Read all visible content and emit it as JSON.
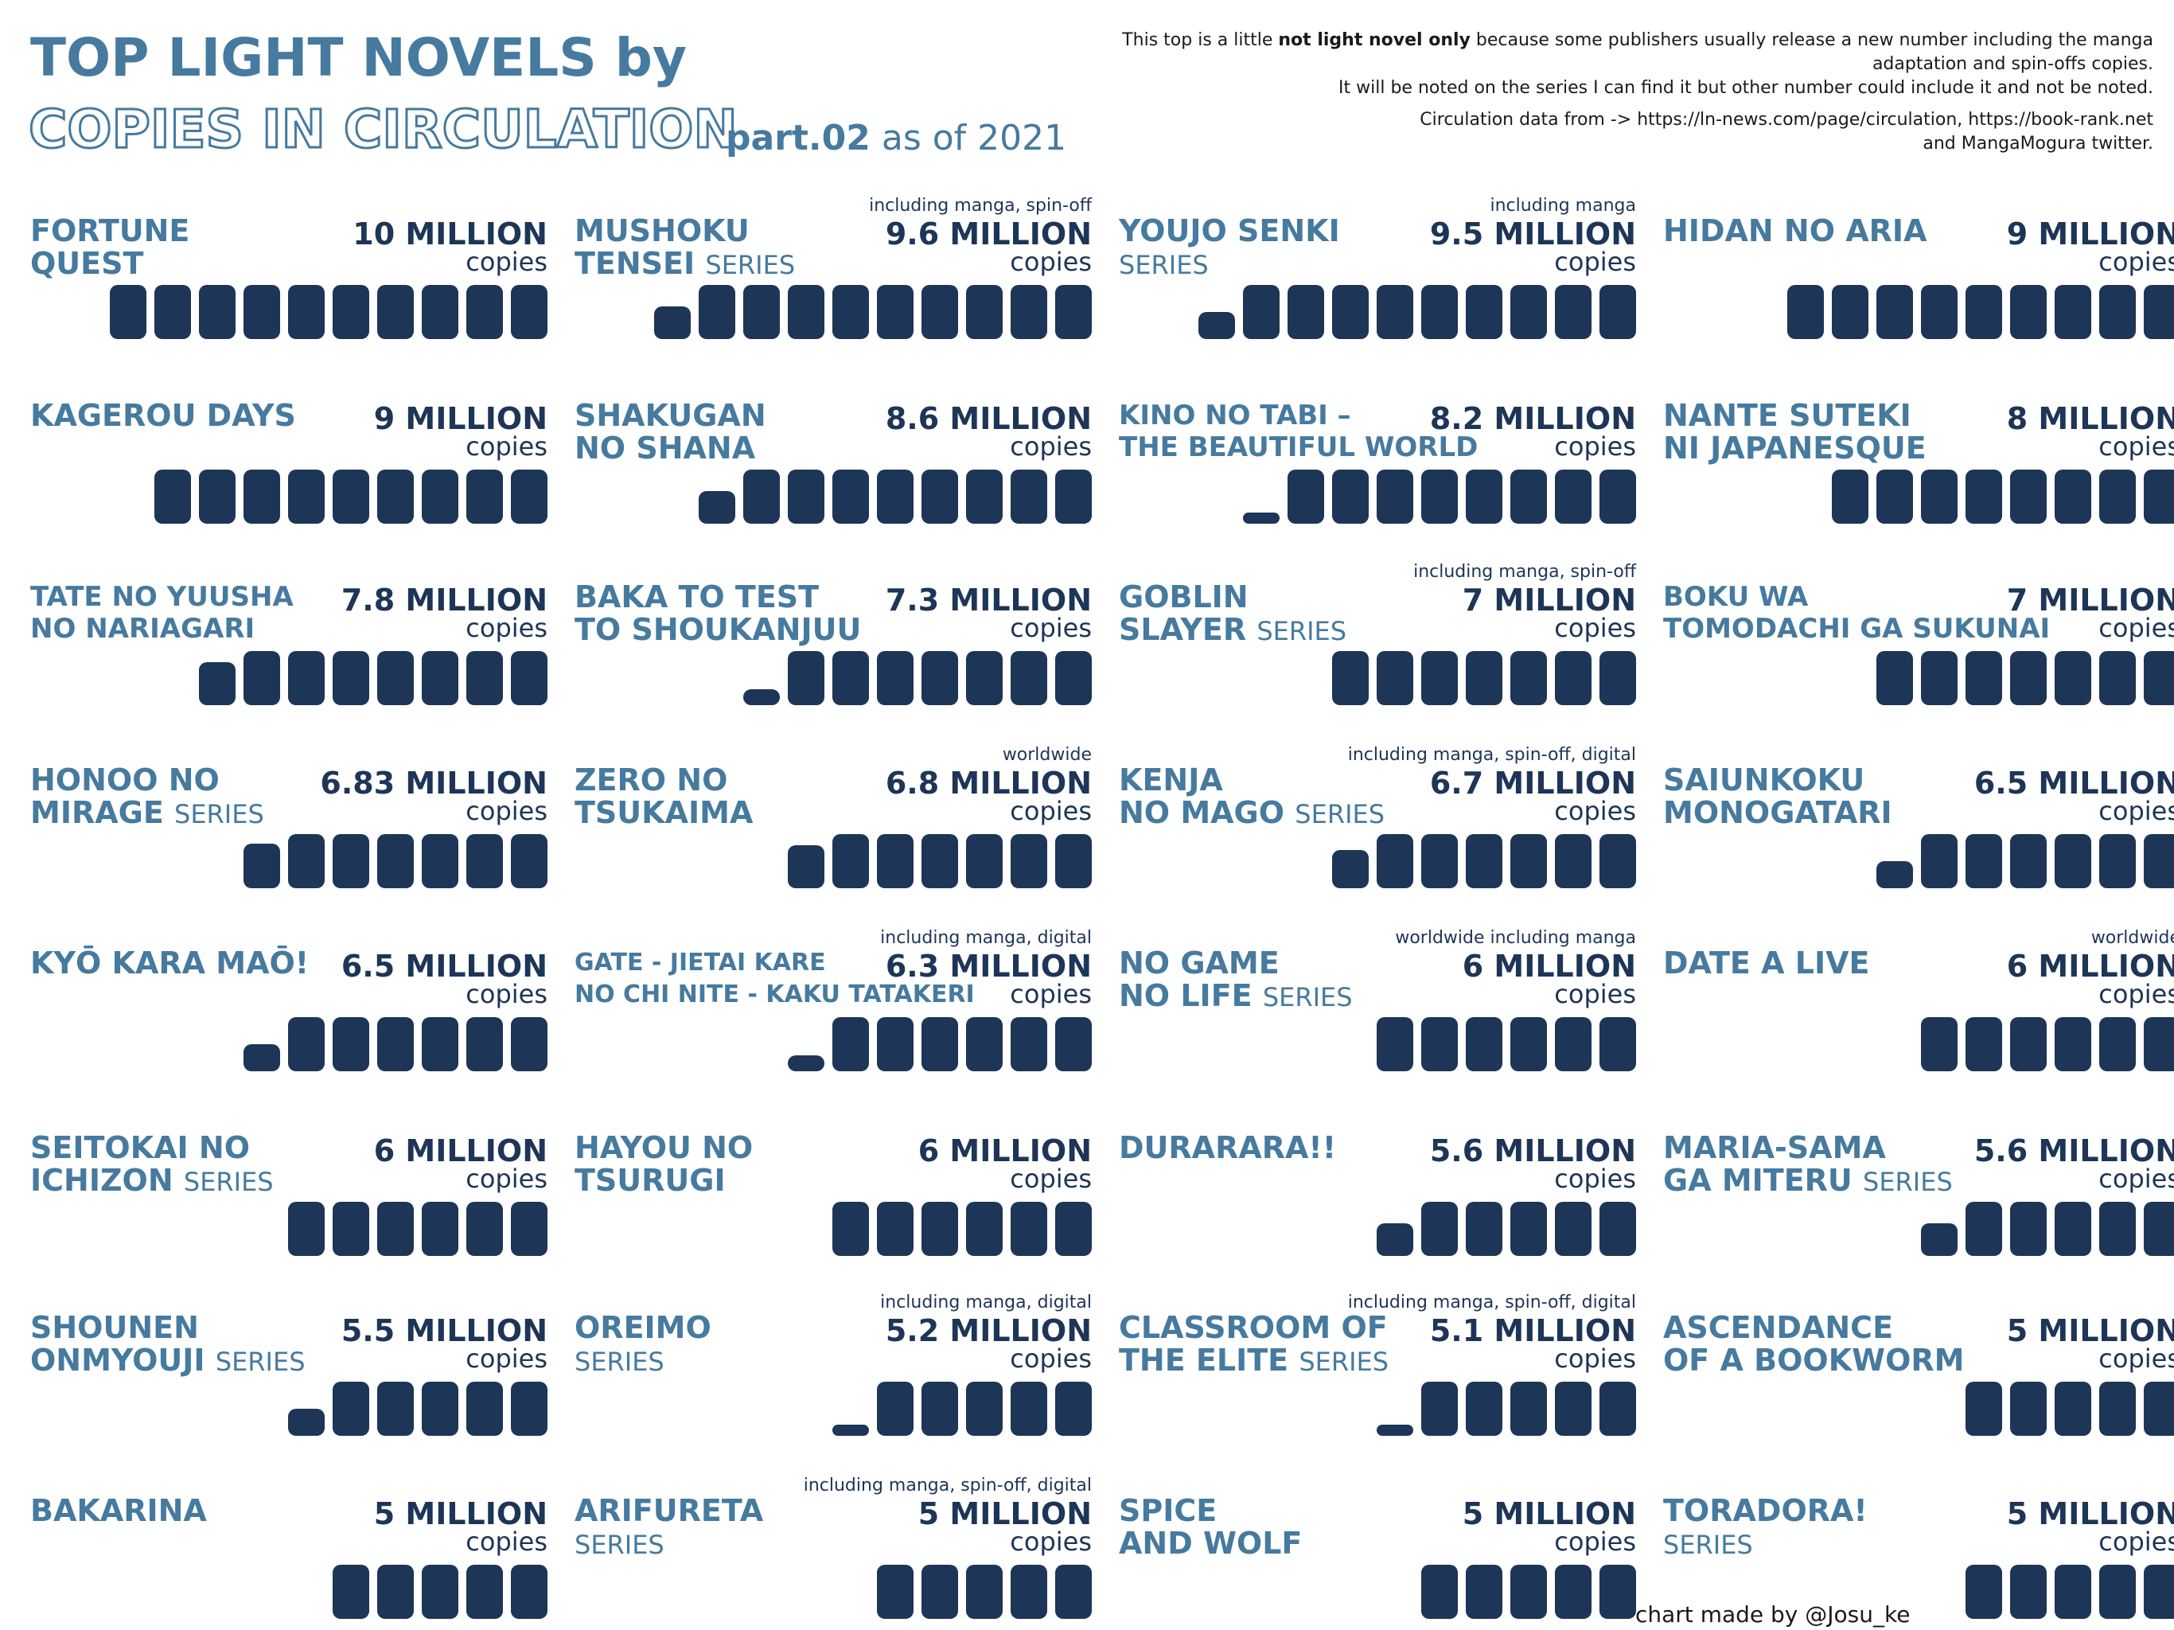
{
  "header": {
    "title_line1": "TOP LIGHT NOVELS by",
    "title_line2": "COPIES IN CIRCULATION",
    "part": "part.02",
    "as_of": " as of 2021",
    "note_pre": "This top is a little ",
    "note_bold": "not light novel only",
    "note_post": " because some publishers usually release a new number including the manga adaptation and spin-offs copies.",
    "note_line3": "It will be noted on the series I can find it but other number could include it and not be noted.",
    "source_line1": "Circulation data from -> https://ln-news.com/page/circulation, https://book-rank.net",
    "source_line2": "and MangaMogura twitter."
  },
  "footer": "chart made by @Josu_ke",
  "colors": {
    "title": "#467a9f",
    "bar": "#1d3557",
    "value": "#1d3557"
  },
  "chart_data": {
    "type": "bar",
    "unit_per_block": "1 million copies",
    "items": [
      {
        "name": [
          "FORTUNE",
          "QUEST"
        ],
        "suffix": "",
        "note": "",
        "value_label": "10 MILLION",
        "value": 10,
        "unit": "copies"
      },
      {
        "name": [
          "MUSHOKU",
          "TENSEI"
        ],
        "suffix": "SERIES",
        "note": "including manga, spin-off",
        "value_label": "9.6 MILLION",
        "value": 9.6,
        "unit": "copies"
      },
      {
        "name": [
          "YOUJO SENKI",
          ""
        ],
        "suffix": "SERIES",
        "note": "including manga",
        "value_label": "9.5 MILLION",
        "value": 9.5,
        "unit": "copies"
      },
      {
        "name": [
          "HIDAN NO ARIA"
        ],
        "suffix": "",
        "note": "",
        "value_label": "9 MILLION",
        "value": 9,
        "unit": "copies"
      },
      {
        "name": [
          "KAGEROU DAYS"
        ],
        "suffix": "",
        "note": "",
        "value_label": "9 MILLION",
        "value": 9,
        "unit": "copies"
      },
      {
        "name": [
          "SHAKUGAN",
          "NO SHANA"
        ],
        "suffix": "",
        "note": "",
        "value_label": "8.6 MILLION",
        "value": 8.6,
        "unit": "copies"
      },
      {
        "name": [
          "KINO NO TABI –",
          "THE BEAUTIFUL WORLD"
        ],
        "suffix": "",
        "note": "",
        "value_label": "8.2 MILLION",
        "value": 8.2,
        "unit": "copies"
      },
      {
        "name": [
          "NANTE SUTEKI",
          "NI JAPANESQUE"
        ],
        "suffix": "",
        "note": "",
        "value_label": "8 MILLION",
        "value": 8,
        "unit": "copies"
      },
      {
        "name": [
          "TATE NO YUUSHA",
          "NO NARIAGARI"
        ],
        "suffix": "",
        "note": "",
        "value_label": "7.8 MILLION",
        "value": 7.8,
        "unit": "copies"
      },
      {
        "name": [
          "BAKA TO TEST",
          "TO SHOUKANJUU"
        ],
        "suffix": "",
        "note": "",
        "value_label": "7.3 MILLION",
        "value": 7.3,
        "unit": "copies"
      },
      {
        "name": [
          "GOBLIN",
          "SLAYER"
        ],
        "suffix": "SERIES",
        "note": "including manga, spin-off",
        "value_label": "7 MILLION",
        "value": 7,
        "unit": "copies"
      },
      {
        "name": [
          "BOKU WA",
          "TOMODACHI GA SUKUNAI"
        ],
        "suffix": "",
        "note": "",
        "value_label": "7 MILLION",
        "value": 7,
        "unit": "copies"
      },
      {
        "name": [
          "HONOO NO",
          "MIRAGE"
        ],
        "suffix": "SERIES",
        "note": "",
        "value_label": "6.83 MILLION",
        "value": 6.83,
        "unit": "copies"
      },
      {
        "name": [
          "ZERO NO",
          "TSUKAIMA"
        ],
        "suffix": "",
        "note": "worldwide",
        "value_label": "6.8 MILLION",
        "value": 6.8,
        "unit": "copies"
      },
      {
        "name": [
          "KENJA",
          "NO MAGO"
        ],
        "suffix": "SERIES",
        "note": "including manga, spin-off, digital",
        "value_label": "6.7 MILLION",
        "value": 6.7,
        "unit": "copies"
      },
      {
        "name": [
          "SAIUNKOKU",
          "MONOGATARI"
        ],
        "suffix": "",
        "note": "",
        "value_label": "6.5 MILLION",
        "value": 6.5,
        "unit": "copies"
      },
      {
        "name": [
          "KYŌ KARA MAŌ!"
        ],
        "suffix": "",
        "note": "",
        "value_label": "6.5 MILLION",
        "value": 6.5,
        "unit": "copies"
      },
      {
        "name": [
          "GATE - JIETAI KARE",
          "NO CHI NITE - KAKU TATAKERI"
        ],
        "suffix": "",
        "note": "including manga, digital",
        "value_label": "6.3 MILLION",
        "value": 6.3,
        "unit": "copies"
      },
      {
        "name": [
          "NO GAME",
          "NO LIFE"
        ],
        "suffix": "SERIES",
        "note": "worldwide including manga",
        "value_label": "6 MILLION",
        "value": 6,
        "unit": "copies"
      },
      {
        "name": [
          "DATE A LIVE"
        ],
        "suffix": "",
        "note": "worldwide",
        "value_label": "6 MILLION",
        "value": 6,
        "unit": "copies"
      },
      {
        "name": [
          "SEITOKAI NO",
          "ICHIZON"
        ],
        "suffix": "SERIES",
        "note": "",
        "value_label": "6 MILLION",
        "value": 6,
        "unit": "copies"
      },
      {
        "name": [
          "HAYOU NO",
          "TSURUGI"
        ],
        "suffix": "",
        "note": "",
        "value_label": "6 MILLION",
        "value": 6,
        "unit": "copies"
      },
      {
        "name": [
          "DURARARA!!"
        ],
        "suffix": "",
        "note": "",
        "value_label": "5.6 MILLION",
        "value": 5.6,
        "unit": "copies"
      },
      {
        "name": [
          "MARIA-SAMA",
          "GA MITERU"
        ],
        "suffix": "SERIES",
        "note": "",
        "value_label": "5.6 MILLION",
        "value": 5.6,
        "unit": "copies"
      },
      {
        "name": [
          "SHOUNEN",
          "ONMYOUJI"
        ],
        "suffix": "SERIES",
        "note": "",
        "value_label": "5.5 MILLION",
        "value": 5.5,
        "unit": "copies"
      },
      {
        "name": [
          "OREIMO",
          ""
        ],
        "suffix": "SERIES",
        "note": "including manga, digital",
        "value_label": "5.2 MILLION",
        "value": 5.2,
        "unit": "copies"
      },
      {
        "name": [
          "CLASSROOM OF",
          "THE ELITE"
        ],
        "suffix": "SERIES",
        "note": "including manga, spin-off, digital",
        "value_label": "5.1 MILLION",
        "value": 5.1,
        "unit": "copies"
      },
      {
        "name": [
          "ASCENDANCE",
          "OF A BOOKWORM"
        ],
        "suffix": "",
        "note": "",
        "value_label": "5 MILLION",
        "value": 5,
        "unit": "copies"
      },
      {
        "name": [
          "BAKARINA"
        ],
        "suffix": "",
        "note": "",
        "value_label": "5 MILLION",
        "value": 5,
        "unit": "copies"
      },
      {
        "name": [
          "ARIFURETA",
          ""
        ],
        "suffix": "SERIES",
        "note": "including manga, spin-off, digital",
        "value_label": "5 MILLION",
        "value": 5,
        "unit": "copies"
      },
      {
        "name": [
          "SPICE",
          "AND WOLF"
        ],
        "suffix": "",
        "note": "",
        "value_label": "5 MILLION",
        "value": 5,
        "unit": "copies"
      },
      {
        "name": [
          "TORADORA!",
          ""
        ],
        "suffix": "SERIES",
        "note": "",
        "value_label": "5 MILLION",
        "value": 5,
        "unit": "copies"
      }
    ]
  }
}
